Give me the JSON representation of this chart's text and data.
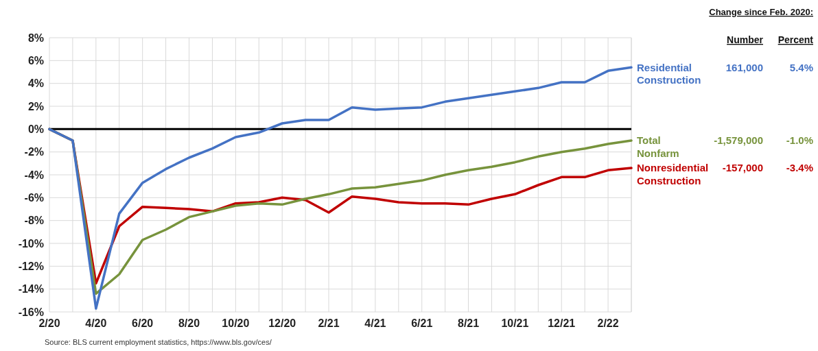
{
  "chart_data": {
    "type": "line",
    "categories": [
      "2/20",
      null,
      "4/20",
      null,
      "6/20",
      null,
      "8/20",
      null,
      "10/20",
      null,
      "12/20",
      null,
      "2/21",
      null,
      "4/21",
      null,
      "6/21",
      null,
      "8/21",
      null,
      "10/21",
      null,
      "12/21",
      null,
      "2/22",
      null
    ],
    "series": [
      {
        "name": "Residential Construction",
        "color": "#4472c4",
        "values": [
          0,
          -1,
          -15.7,
          -7.4,
          -4.7,
          -3.5,
          -2.5,
          -1.7,
          -0.7,
          -0.3,
          0.5,
          0.8,
          0.8,
          1.9,
          1.7,
          1.8,
          1.9,
          2.4,
          2.7,
          3.0,
          3.3,
          3.6,
          4.1,
          4.1,
          5.1,
          5.4
        ]
      },
      {
        "name": "Total Nonfarm",
        "color": "#77933c",
        "values": [
          0,
          -1,
          -14.4,
          -12.7,
          -9.7,
          -8.8,
          -7.7,
          -7.2,
          -6.7,
          -6.5,
          -6.6,
          -6.1,
          -5.7,
          -5.2,
          -5.1,
          -4.8,
          -4.5,
          -4.0,
          -3.6,
          -3.3,
          -2.9,
          -2.4,
          -2.0,
          -1.7,
          -1.3,
          -1.0
        ]
      },
      {
        "name": "Nonresidential Construction",
        "color": "#c00000",
        "values": [
          0,
          -1,
          -13.5,
          -8.5,
          -6.8,
          -6.9,
          -7.0,
          -7.2,
          -6.5,
          -6.4,
          -6.0,
          -6.2,
          -7.3,
          -5.9,
          -6.1,
          -6.4,
          -6.5,
          -6.5,
          -6.6,
          -6.1,
          -5.7,
          -4.9,
          -4.2,
          -4.2,
          -3.6,
          -3.4
        ]
      }
    ],
    "ylim": [
      -16,
      8
    ],
    "yticks": [
      {
        "value": -16,
        "label": "-16%"
      },
      {
        "value": -14,
        "label": "-14%"
      },
      {
        "value": -12,
        "label": "-12%"
      },
      {
        "value": -10,
        "label": "-10%"
      },
      {
        "value": -8,
        "label": "-8%"
      },
      {
        "value": -6,
        "label": "-6%"
      },
      {
        "value": -4,
        "label": "-4%"
      },
      {
        "value": -2,
        "label": "-2%"
      },
      {
        "value": 0,
        "label": "0%"
      },
      {
        "value": 2,
        "label": "2%"
      },
      {
        "value": 4,
        "label": "4%"
      },
      {
        "value": 6,
        "label": "6%"
      },
      {
        "value": 8,
        "label": "8%"
      }
    ],
    "grid": true,
    "ref_lines": [
      {
        "axis": "y",
        "value": 0,
        "color": "#000000"
      }
    ],
    "annotations": [
      "Change since Feb. 2020:",
      "Number",
      "Percent",
      "161,000",
      "5.4%",
      "-1,579,000",
      "-1.0%",
      "-157,000",
      "-3.4%",
      "Source: BLS current employment statistics, https://www.bls.gov/ces/"
    ]
  }
}
